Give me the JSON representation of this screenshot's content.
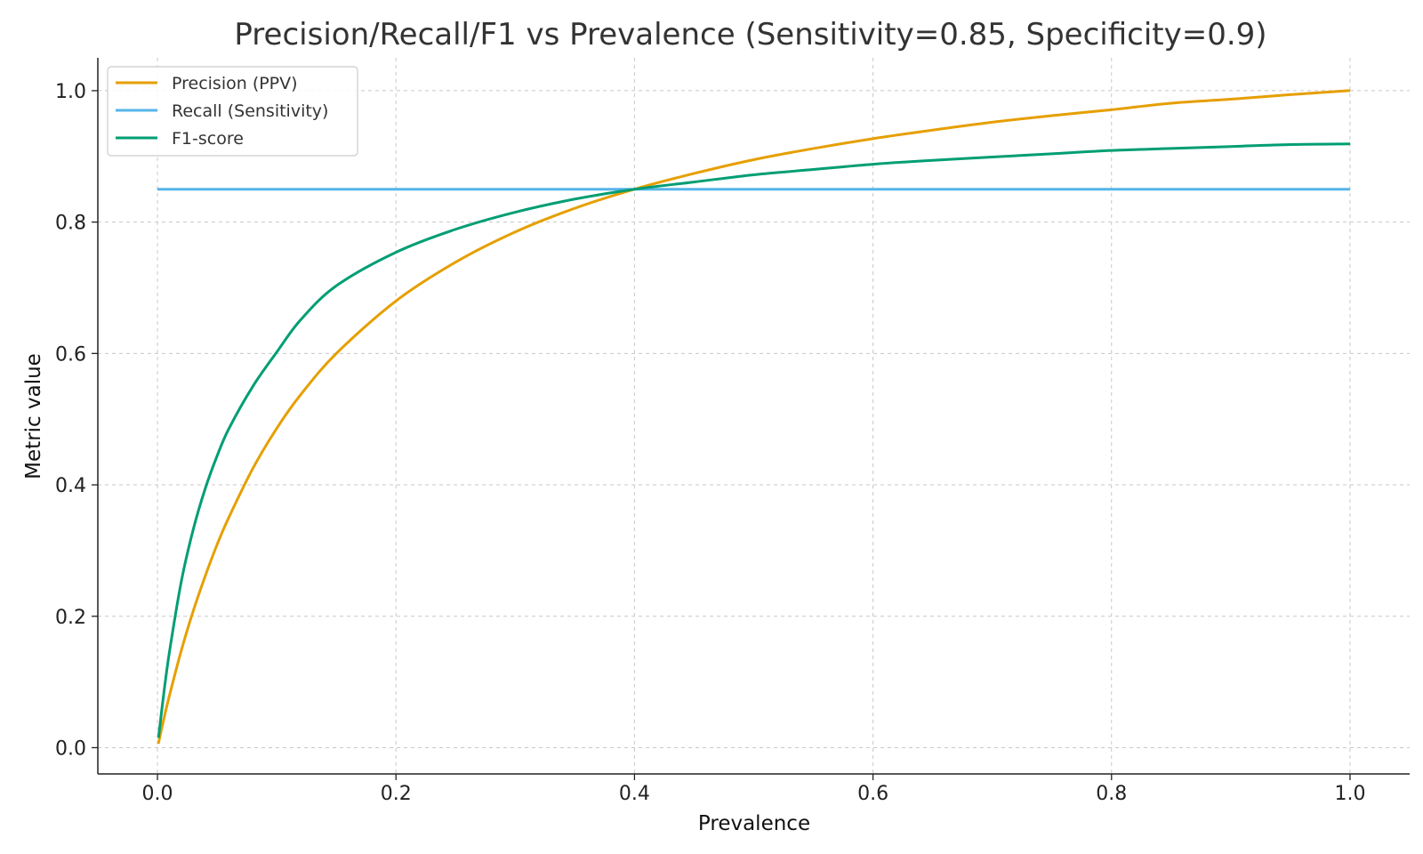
{
  "chart_data": {
    "type": "line",
    "title": "Precision/Recall/F1 vs Prevalence (Sensitivity=0.85, Specificity=0.9)",
    "xlabel": "Prevalence",
    "ylabel": "Metric value",
    "xlim": [
      -0.05,
      1.05
    ],
    "ylim": [
      -0.04,
      1.05
    ],
    "xticks": [
      0.0,
      0.2,
      0.4,
      0.6,
      0.8,
      1.0
    ],
    "xtick_labels": [
      "0.0",
      "0.2",
      "0.4",
      "0.6",
      "0.8",
      "1.0"
    ],
    "yticks": [
      0.0,
      0.2,
      0.4,
      0.6,
      0.8,
      1.0
    ],
    "ytick_labels": [
      "0.0",
      "0.2",
      "0.4",
      "0.6",
      "0.8",
      "1.0"
    ],
    "grid": true,
    "legend_position": "upper-left",
    "x": [
      0.001,
      0.005,
      0.01,
      0.02,
      0.03,
      0.04,
      0.05,
      0.06,
      0.08,
      0.1,
      0.12,
      0.15,
      0.2,
      0.25,
      0.3,
      0.35,
      0.4,
      0.45,
      0.5,
      0.55,
      0.6,
      0.65,
      0.7,
      0.75,
      0.8,
      0.85,
      0.9,
      0.95,
      0.999
    ],
    "series": [
      {
        "name": "Precision (PPV)",
        "color": "#E69F00",
        "values": [
          0.008,
          0.041,
          0.079,
          0.148,
          0.208,
          0.261,
          0.309,
          0.351,
          0.425,
          0.486,
          0.537,
          0.6,
          0.68,
          0.739,
          0.785,
          0.821,
          0.85,
          0.874,
          0.895,
          0.912,
          0.927,
          0.94,
          0.952,
          0.962,
          0.971,
          0.981,
          0.987,
          0.994,
          1.0
        ]
      },
      {
        "name": "Recall (Sensitivity)",
        "color": "#56B4E9",
        "values": [
          0.85,
          0.85,
          0.85,
          0.85,
          0.85,
          0.85,
          0.85,
          0.85,
          0.85,
          0.85,
          0.85,
          0.85,
          0.85,
          0.85,
          0.85,
          0.85,
          0.85,
          0.85,
          0.85,
          0.85,
          0.85,
          0.85,
          0.85,
          0.85,
          0.85,
          0.85,
          0.85,
          0.85,
          0.85
        ]
      },
      {
        "name": "F1-score",
        "color": "#009E73",
        "values": [
          0.017,
          0.078,
          0.145,
          0.253,
          0.332,
          0.394,
          0.444,
          0.486,
          0.55,
          0.602,
          0.651,
          0.703,
          0.754,
          0.789,
          0.815,
          0.835,
          0.85,
          0.861,
          0.872,
          0.88,
          0.888,
          0.894,
          0.899,
          0.904,
          0.909,
          0.912,
          0.915,
          0.918,
          0.919
        ]
      }
    ]
  }
}
